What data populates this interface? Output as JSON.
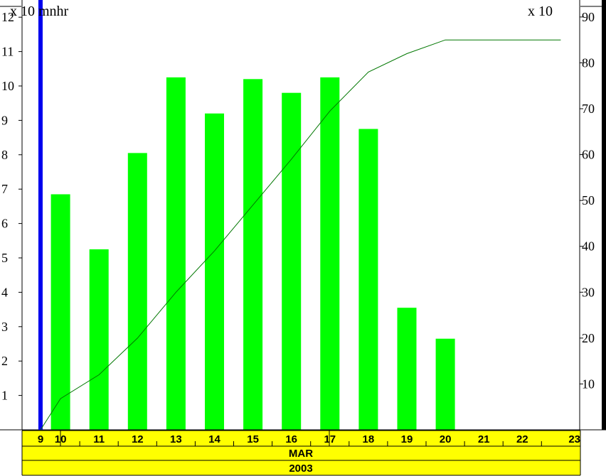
{
  "chart_data": {
    "type": "bar",
    "title": "",
    "left_unit_label": "x 10 mnhr",
    "right_unit_label": "x 10",
    "x": [
      10,
      11,
      12,
      13,
      14,
      15,
      16,
      17,
      18,
      19,
      20,
      21,
      22,
      23
    ],
    "x_tick_labels": [
      "9",
      "10",
      "11",
      "12",
      "13",
      "14",
      "15",
      "16",
      "17",
      "18",
      "19",
      "20",
      "21",
      "22",
      "23"
    ],
    "xlim": [
      9,
      23
    ],
    "bar_values": [
      6.85,
      5.25,
      8.05,
      10.25,
      9.2,
      10.2,
      9.8,
      10.25,
      8.75,
      3.55,
      2.65,
      0,
      0,
      0
    ],
    "bar_color": "#00ff00",
    "cumulative_x": [
      9,
      10,
      11,
      12,
      13,
      14,
      15,
      16,
      17,
      18,
      19,
      20,
      21,
      22,
      23
    ],
    "cumulative_values": [
      0,
      6.8,
      12,
      20,
      30,
      39,
      49,
      59,
      69.5,
      78,
      82,
      85,
      85,
      85,
      85
    ],
    "cumulative_color": "#007700",
    "left_ylim": [
      0,
      12.5
    ],
    "left_ticks": [
      1,
      2,
      3,
      4,
      5,
      6,
      7,
      8,
      9,
      10,
      11,
      12
    ],
    "right_ylim": [
      0,
      93.7
    ],
    "right_ticks": [
      10,
      20,
      30,
      40,
      50,
      60,
      70,
      80,
      90
    ],
    "right_tick_labels": [
      "10",
      "20",
      "30",
      "40",
      "50",
      "60",
      "70",
      "80",
      "90"
    ],
    "current_marker_x": 9.48,
    "current_marker_color": "#0000ee",
    "month_label": "MAR",
    "year_label": "2003",
    "band_color": "#ffff00",
    "grid": false
  }
}
